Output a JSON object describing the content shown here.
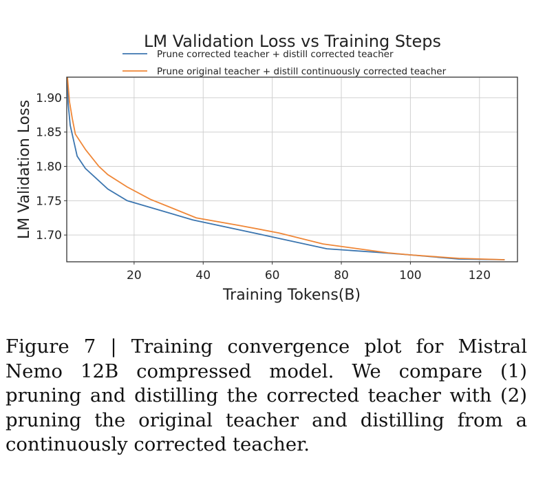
{
  "chart_data": {
    "type": "line",
    "title": "LM Validation Loss vs Training Steps",
    "xlabel": "Training Tokens(B)",
    "ylabel": "LM Validation Loss",
    "xlim": [
      0.5,
      131
    ],
    "ylim": [
      1.661,
      1.93
    ],
    "xticks": [
      20,
      40,
      60,
      80,
      100,
      120
    ],
    "xtick_labels": [
      "20",
      "40",
      "60",
      "80",
      "100",
      "120"
    ],
    "yticks": [
      1.7,
      1.75,
      1.8,
      1.85,
      1.9
    ],
    "ytick_labels": [
      "1.70",
      "1.75",
      "1.80",
      "1.85",
      "1.90"
    ],
    "grid": true,
    "legend_position": "top-center",
    "series": [
      {
        "name": "Prune corrected teacher + distill corrected teacher",
        "color": "#3b75af",
        "x": [
          0.7,
          0.9,
          1.5,
          3.5,
          5.9,
          12.4,
          18,
          37,
          57.4,
          75.8,
          90,
          100,
          114,
          127.3
        ],
        "y": [
          1.93,
          1.892,
          1.86,
          1.815,
          1.797,
          1.767,
          1.75,
          1.722,
          1.7,
          1.68,
          1.675,
          1.671,
          1.665,
          1.664
        ]
      },
      {
        "name": "Prune original teacher + distill continuously corrected teacher",
        "color": "#ef8636",
        "x": [
          0.7,
          1.3,
          2.1,
          3,
          6,
          9.8,
          12.4,
          18,
          24.7,
          38,
          50.4,
          62,
          74.7,
          93.5,
          100,
          114,
          127.3
        ],
        "y": [
          1.93,
          1.894,
          1.87,
          1.847,
          1.824,
          1.8,
          1.788,
          1.77,
          1.752,
          1.725,
          1.714,
          1.703,
          1.687,
          1.674,
          1.671,
          1.666,
          1.664
        ]
      }
    ]
  },
  "caption": "Figure 7 | Training convergence plot for Mistral Nemo 12B compressed model. We compare (1) pruning and distilling the corrected teacher with (2) pruning the original teacher and distilling from a continuously corrected teacher."
}
